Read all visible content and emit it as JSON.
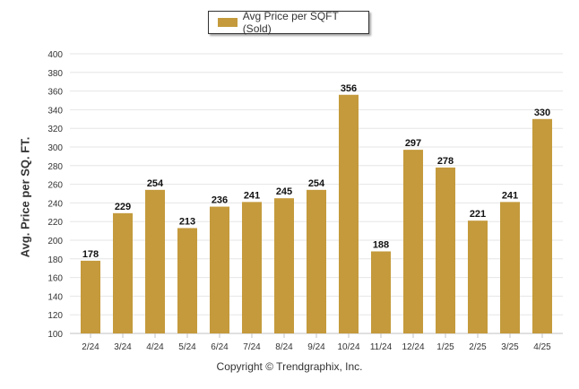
{
  "chart_data": {
    "type": "bar",
    "categories": [
      "2/24",
      "3/24",
      "4/24",
      "5/24",
      "6/24",
      "7/24",
      "8/24",
      "9/24",
      "10/24",
      "11/24",
      "12/24",
      "1/25",
      "2/25",
      "3/25",
      "4/25"
    ],
    "series": [
      {
        "name": "Avg Price per SQFT (Sold)",
        "values": [
          178,
          229,
          254,
          213,
          236,
          241,
          245,
          254,
          356,
          188,
          297,
          278,
          221,
          241,
          330
        ]
      }
    ],
    "title": "",
    "xlabel": "",
    "ylabel": "Avg. Price per SQ. FT.",
    "ylim": [
      100,
      400
    ],
    "yticks": [
      100,
      120,
      140,
      160,
      180,
      200,
      220,
      240,
      260,
      280,
      300,
      320,
      340,
      360,
      380,
      400
    ],
    "grid": true,
    "legend_position": "top-center",
    "data_labels": true,
    "bar_color": "#c49a3c",
    "footer": "Copyright © Trendgraphix, Inc."
  }
}
